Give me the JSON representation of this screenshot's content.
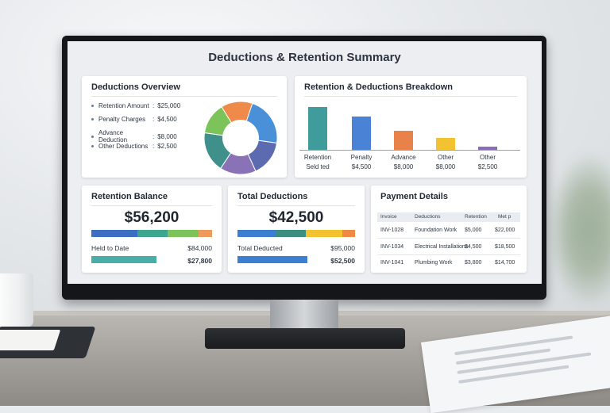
{
  "screen": {
    "title": "Deductions & Retention Summary"
  },
  "deductions_overview": {
    "title": "Deductions Overview",
    "items": [
      {
        "label": "Retention Amount",
        "value": "$25,000"
      },
      {
        "label": "Penalty Charges",
        "value": "$4,500"
      },
      {
        "label": "Advance Deduction",
        "value": "$8,000"
      },
      {
        "label": "Other Deductions",
        "value": "$2,500"
      }
    ],
    "donut_colors": [
      "#f08a4b",
      "#4a90d9",
      "#5c6bb0",
      "#8a72b6",
      "#3f8f8a",
      "#7cc35a"
    ]
  },
  "breakdown": {
    "title": "Retention & Deductions Breakdown",
    "bars": [
      {
        "name": "Retention",
        "value": "Seld ted",
        "color": "#3f9c9a",
        "level": 1.0
      },
      {
        "name": "Penalty",
        "value": "$4,500",
        "color": "#4a83d6",
        "level": 0.78
      },
      {
        "name": "Advance",
        "value": "$8,000",
        "color": "#e8824a",
        "level": 0.44
      },
      {
        "name": "Other",
        "value": "$8,000",
        "color": "#f2c230",
        "level": 0.27
      },
      {
        "name": "Other",
        "value": "$2,500",
        "color": "#8a6db8",
        "level": 0.07
      }
    ]
  },
  "retention_balance": {
    "title": "Retention Balance",
    "amount": "$56,200",
    "segments": [
      "#3c6fc2",
      "#3ea58f",
      "#7cc35a",
      "#ee9a5c"
    ],
    "rows": [
      {
        "label": "Held to Date",
        "value": "$84,000"
      },
      {
        "value": "$27,800"
      }
    ],
    "fill_color": "#4aaea8"
  },
  "total_deductions": {
    "title": "Total Deductions",
    "amount": "$42,500",
    "segments": [
      "#3c7fd0",
      "#3a8f80",
      "#f2c230",
      "#ee8a45"
    ],
    "rows": [
      {
        "label": "Total Deducted",
        "value": "$95,000"
      },
      {
        "value": "$52,500"
      }
    ],
    "fill_color": "#3c7fd0"
  },
  "payment_details": {
    "title": "Payment Details",
    "columns": [
      "Invoice",
      "Deductions",
      "Retention",
      "Met p"
    ],
    "rows": [
      [
        "INV-1028",
        "Foundation Work",
        "$5,000",
        "$22,000"
      ],
      [
        "INV-1034",
        "Electrical Installations",
        "$4,500",
        "$18,500"
      ],
      [
        "INV-1041",
        "Plumbing Work",
        "$3,800",
        "$14,700"
      ]
    ]
  }
}
